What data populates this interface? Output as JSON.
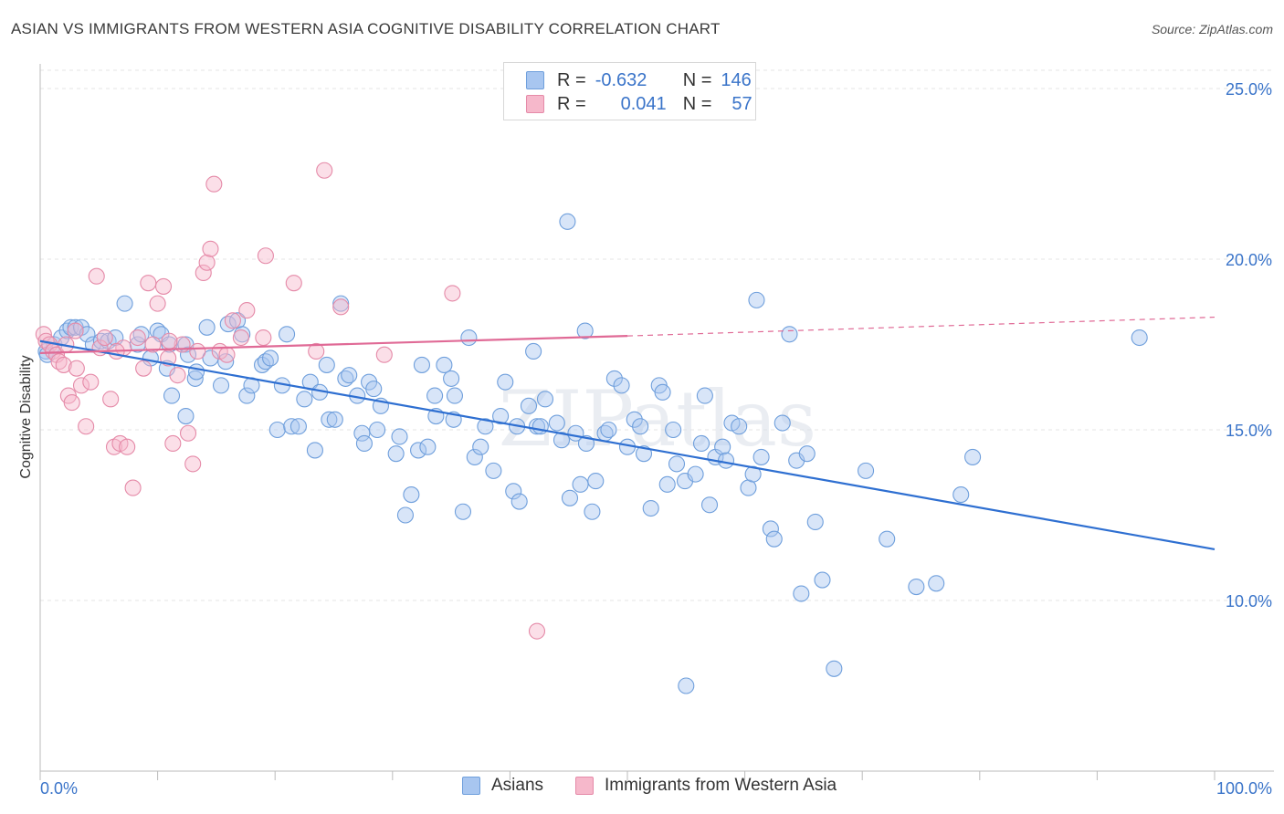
{
  "title": "ASIAN VS IMMIGRANTS FROM WESTERN ASIA COGNITIVE DISABILITY CORRELATION CHART",
  "source": "Source: ZipAtlas.com",
  "watermark": "ZIPatlas",
  "legend_top": [
    {
      "r_label": "R =",
      "r_value": "-0.632",
      "n_label": "N =",
      "n_value": "146",
      "color": "#a8c6f0",
      "edge": "#6f9fdc"
    },
    {
      "r_label": "R =",
      "r_value": "0.041",
      "n_label": "N =",
      "n_value": "57",
      "color": "#f6b8cb",
      "edge": "#e58aa8"
    }
  ],
  "legend_bottom": [
    {
      "label": "Asians",
      "color": "#a8c6f0",
      "edge": "#6f9fdc"
    },
    {
      "label": "Immigrants from Western Asia",
      "color": "#f6b8cb",
      "edge": "#e58aa8"
    }
  ],
  "chart_data": {
    "type": "scatter",
    "title": "ASIAN VS IMMIGRANTS FROM WESTERN ASIA COGNITIVE DISABILITY CORRELATION CHART",
    "xlabel": "",
    "ylabel": "Cognitive Disability",
    "xlim": [
      0,
      100
    ],
    "ylim": [
      5,
      26
    ],
    "x_tick_labels": [
      "0.0%",
      "100.0%"
    ],
    "y_ticks": [
      10,
      15,
      20,
      25
    ],
    "y_tick_labels": [
      "10.0%",
      "15.0%",
      "20.0%",
      "25.0%"
    ],
    "grid": true,
    "legend_position": "top-center",
    "series": [
      {
        "name": "Asians",
        "color": "#6f9fdc",
        "fill": "#a8c6f0",
        "trend": {
          "x": [
            0,
            100
          ],
          "y": [
            17.6,
            11.5
          ],
          "color": "#2e6fd1",
          "style": "solid"
        },
        "points": [
          [
            0.5,
            17.3
          ],
          [
            0.6,
            17.2
          ],
          [
            1.2,
            17.5
          ],
          [
            1.8,
            17.7
          ],
          [
            2.3,
            17.9
          ],
          [
            2.6,
            18.0
          ],
          [
            3.0,
            18.0
          ],
          [
            3.5,
            18.0
          ],
          [
            4.0,
            17.8
          ],
          [
            4.5,
            17.5
          ],
          [
            5.2,
            17.6
          ],
          [
            5.8,
            17.6
          ],
          [
            6.4,
            17.7
          ],
          [
            7.2,
            18.7
          ],
          [
            8.3,
            17.5
          ],
          [
            8.6,
            17.8
          ],
          [
            9.4,
            17.1
          ],
          [
            10.0,
            17.9
          ],
          [
            10.3,
            17.8
          ],
          [
            11.0,
            17.5
          ],
          [
            10.8,
            16.8
          ],
          [
            11.2,
            16.0
          ],
          [
            12.4,
            17.5
          ],
          [
            12.6,
            17.2
          ],
          [
            12.4,
            15.4
          ],
          [
            13.2,
            16.5
          ],
          [
            13.3,
            16.7
          ],
          [
            14.2,
            18.0
          ],
          [
            14.5,
            17.1
          ],
          [
            15.4,
            16.3
          ],
          [
            15.8,
            17.0
          ],
          [
            16.0,
            18.1
          ],
          [
            16.8,
            18.2
          ],
          [
            17.2,
            17.8
          ],
          [
            17.6,
            16.0
          ],
          [
            18.0,
            16.3
          ],
          [
            18.9,
            16.9
          ],
          [
            19.2,
            17.0
          ],
          [
            19.6,
            17.1
          ],
          [
            20.2,
            15.0
          ],
          [
            21.0,
            17.8
          ],
          [
            21.4,
            15.1
          ],
          [
            22.0,
            15.1
          ],
          [
            22.5,
            15.9
          ],
          [
            23.0,
            16.4
          ],
          [
            23.4,
            14.4
          ],
          [
            23.8,
            16.1
          ],
          [
            24.4,
            16.9
          ],
          [
            24.6,
            15.3
          ],
          [
            25.1,
            15.3
          ],
          [
            25.6,
            18.7
          ],
          [
            26.0,
            16.5
          ],
          [
            26.3,
            16.6
          ],
          [
            27.0,
            16.0
          ],
          [
            27.4,
            14.9
          ],
          [
            28.0,
            16.4
          ],
          [
            28.4,
            16.2
          ],
          [
            28.7,
            15.0
          ],
          [
            29.0,
            15.7
          ],
          [
            30.3,
            14.3
          ],
          [
            30.6,
            14.8
          ],
          [
            31.1,
            12.5
          ],
          [
            31.6,
            13.1
          ],
          [
            32.2,
            14.4
          ],
          [
            32.5,
            16.9
          ],
          [
            33.0,
            14.5
          ],
          [
            33.6,
            16.0
          ],
          [
            33.7,
            15.4
          ],
          [
            34.4,
            16.9
          ],
          [
            35.2,
            15.3
          ],
          [
            35.3,
            16.0
          ],
          [
            36.0,
            12.6
          ],
          [
            36.5,
            17.7
          ],
          [
            37.0,
            14.2
          ],
          [
            37.5,
            14.5
          ],
          [
            37.9,
            15.1
          ],
          [
            38.6,
            13.8
          ],
          [
            39.2,
            15.4
          ],
          [
            39.6,
            16.4
          ],
          [
            40.3,
            13.2
          ],
          [
            40.6,
            15.1
          ],
          [
            40.8,
            12.9
          ],
          [
            41.6,
            15.7
          ],
          [
            42.0,
            17.3
          ],
          [
            42.3,
            15.1
          ],
          [
            42.6,
            15.1
          ],
          [
            43.0,
            15.9
          ],
          [
            44.0,
            15.2
          ],
          [
            44.4,
            14.7
          ],
          [
            45.1,
            13.0
          ],
          [
            45.6,
            14.9
          ],
          [
            46.0,
            13.4
          ],
          [
            46.4,
            17.9
          ],
          [
            47.0,
            12.6
          ],
          [
            47.3,
            13.5
          ],
          [
            48.1,
            14.9
          ],
          [
            48.4,
            15.0
          ],
          [
            48.9,
            16.5
          ],
          [
            49.5,
            16.3
          ],
          [
            50.0,
            14.5
          ],
          [
            50.6,
            15.3
          ],
          [
            51.1,
            15.1
          ],
          [
            51.4,
            14.3
          ],
          [
            52.0,
            12.7
          ],
          [
            52.7,
            16.3
          ],
          [
            53.0,
            16.1
          ],
          [
            53.4,
            13.4
          ],
          [
            53.9,
            15.0
          ],
          [
            54.2,
            14.0
          ],
          [
            54.9,
            13.5
          ],
          [
            55.0,
            7.5
          ],
          [
            55.8,
            13.7
          ],
          [
            56.3,
            14.6
          ],
          [
            56.6,
            16.0
          ],
          [
            57.0,
            12.8
          ],
          [
            57.5,
            14.2
          ],
          [
            58.1,
            14.5
          ],
          [
            58.4,
            14.1
          ],
          [
            58.9,
            15.2
          ],
          [
            59.5,
            15.1
          ],
          [
            60.3,
            13.3
          ],
          [
            60.7,
            13.7
          ],
          [
            61.0,
            18.8
          ],
          [
            61.4,
            14.2
          ],
          [
            62.2,
            12.1
          ],
          [
            62.5,
            11.8
          ],
          [
            63.2,
            15.2
          ],
          [
            63.8,
            17.8
          ],
          [
            64.4,
            14.1
          ],
          [
            64.8,
            10.2
          ],
          [
            65.3,
            14.3
          ],
          [
            66.0,
            12.3
          ],
          [
            66.6,
            10.6
          ],
          [
            67.6,
            8.0
          ],
          [
            70.3,
            13.8
          ],
          [
            72.1,
            11.8
          ],
          [
            74.6,
            10.4
          ],
          [
            76.3,
            10.5
          ],
          [
            78.4,
            13.1
          ],
          [
            79.4,
            14.2
          ],
          [
            93.6,
            17.7
          ],
          [
            44.9,
            21.1
          ],
          [
            35.0,
            16.5
          ],
          [
            20.6,
            16.3
          ],
          [
            27.6,
            14.6
          ],
          [
            46.5,
            14.6
          ]
        ]
      },
      {
        "name": "Immigrants from Western Asia",
        "color": "#e58aa8",
        "fill": "#f6b8cb",
        "trend": {
          "x": [
            0,
            50
          ],
          "y": [
            17.25,
            17.75
          ],
          "x_dashed_to": 100,
          "y_dashed_to": 18.3,
          "color": "#e06a96",
          "style": "solid-then-dashed"
        },
        "points": [
          [
            0.3,
            17.8
          ],
          [
            0.5,
            17.6
          ],
          [
            0.8,
            17.5
          ],
          [
            1.1,
            17.3
          ],
          [
            1.4,
            17.2
          ],
          [
            1.6,
            17.0
          ],
          [
            2.0,
            16.9
          ],
          [
            2.4,
            16.0
          ],
          [
            2.7,
            15.8
          ],
          [
            3.1,
            16.8
          ],
          [
            3.5,
            16.3
          ],
          [
            3.9,
            15.1
          ],
          [
            4.3,
            16.4
          ],
          [
            4.8,
            19.5
          ],
          [
            5.1,
            17.4
          ],
          [
            5.5,
            17.7
          ],
          [
            6.0,
            15.9
          ],
          [
            6.3,
            14.5
          ],
          [
            6.8,
            14.6
          ],
          [
            7.1,
            17.4
          ],
          [
            7.4,
            14.5
          ],
          [
            7.9,
            13.3
          ],
          [
            8.3,
            17.7
          ],
          [
            8.8,
            16.8
          ],
          [
            9.2,
            19.3
          ],
          [
            9.6,
            17.5
          ],
          [
            10.0,
            18.7
          ],
          [
            10.5,
            19.2
          ],
          [
            10.9,
            17.1
          ],
          [
            11.3,
            14.6
          ],
          [
            11.7,
            16.6
          ],
          [
            12.1,
            17.5
          ],
          [
            12.6,
            14.9
          ],
          [
            13.0,
            14.0
          ],
          [
            13.4,
            17.3
          ],
          [
            13.9,
            19.6
          ],
          [
            14.2,
            19.9
          ],
          [
            14.5,
            20.3
          ],
          [
            14.8,
            22.2
          ],
          [
            15.3,
            17.3
          ],
          [
            15.9,
            17.2
          ],
          [
            16.4,
            18.2
          ],
          [
            17.1,
            17.7
          ],
          [
            17.6,
            18.5
          ],
          [
            19.0,
            17.7
          ],
          [
            19.2,
            20.1
          ],
          [
            21.6,
            19.3
          ],
          [
            23.5,
            17.3
          ],
          [
            24.2,
            22.6
          ],
          [
            25.6,
            18.6
          ],
          [
            29.3,
            17.2
          ],
          [
            35.1,
            19.0
          ],
          [
            42.3,
            9.1
          ],
          [
            11.0,
            17.6
          ],
          [
            3.0,
            17.9
          ],
          [
            2.2,
            17.5
          ],
          [
            6.5,
            17.3
          ]
        ]
      }
    ]
  }
}
